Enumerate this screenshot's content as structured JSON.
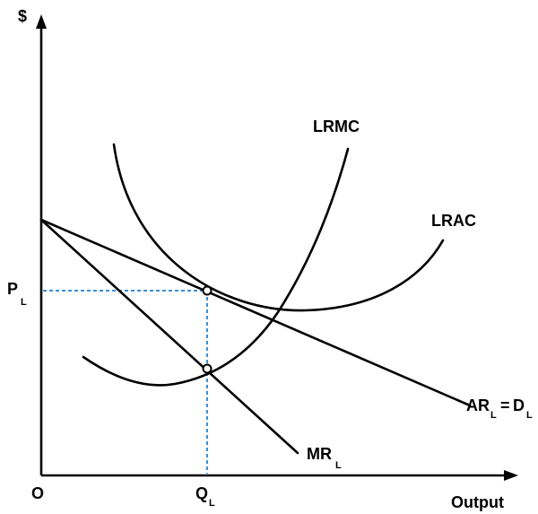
{
  "axes": {
    "y_label": "$",
    "x_label": "Output",
    "origin_label": "O"
  },
  "price": {
    "main": "P",
    "sub": "L"
  },
  "quantity": {
    "main": "Q",
    "sub": "L"
  },
  "curves": {
    "lrmc": "LRMC",
    "lrac": "LRAC",
    "demand": {
      "main1": "AR",
      "sub1": "L",
      "eq": " = ",
      "main2": "D",
      "sub2": "L"
    },
    "mr": {
      "main": "MR",
      "sub": "L"
    }
  },
  "colors": {
    "curves": "#000000",
    "guides": "#3a8fd4"
  }
}
